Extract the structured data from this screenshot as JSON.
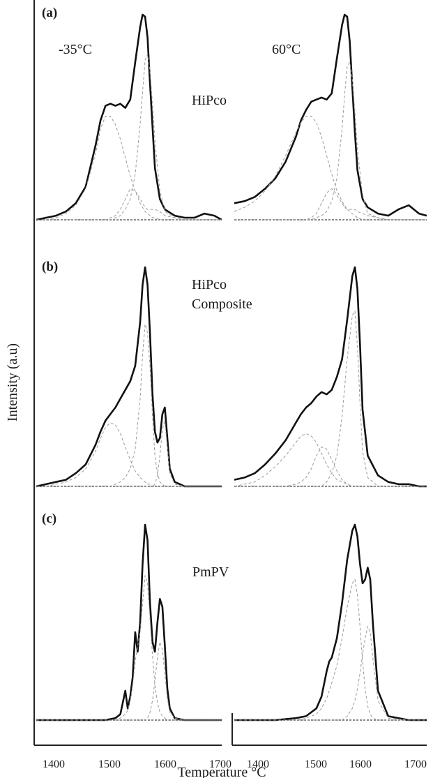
{
  "figure": {
    "ylabel": "Intensity (a.u)",
    "xlabel": "Temperature °C",
    "columns": [
      "-35°C",
      "60°C"
    ],
    "x_ticks": [
      "1400",
      "1500",
      "1600",
      "1700"
    ]
  },
  "chart_data": [
    {
      "type": "line",
      "panel": "(a)",
      "label": "HiPco",
      "column": "-35°C",
      "x": [
        1360,
        1380,
        1400,
        1420,
        1440,
        1460,
        1480,
        1490,
        1500,
        1510,
        1520,
        1530,
        1540,
        1550,
        1560,
        1570,
        1575,
        1580,
        1585,
        1590,
        1595,
        1600,
        1610,
        1620,
        1640,
        1660,
        1680,
        1700,
        1720,
        1735
      ],
      "series": [
        {
          "values": [
            0.0,
            0.01,
            0.02,
            0.04,
            0.08,
            0.16,
            0.36,
            0.48,
            0.55,
            0.56,
            0.55,
            0.56,
            0.54,
            0.58,
            0.76,
            0.93,
            0.99,
            0.98,
            0.88,
            0.66,
            0.45,
            0.25,
            0.1,
            0.05,
            0.02,
            0.01,
            0.01,
            0.03,
            0.02,
            0.0
          ]
        },
        {
          "values": [
            0.0,
            0.0,
            0.01,
            0.03,
            0.07,
            0.15,
            0.32,
            0.44,
            0.5,
            0.5,
            0.46,
            0.39,
            0.3,
            0.21,
            0.14,
            0.08,
            0.06,
            0.04,
            0.03,
            0.02,
            0.01,
            0.01,
            0.0,
            0.0,
            0.0,
            0.0,
            0.0,
            0.0,
            0.0,
            0.0
          ]
        },
        {
          "values": [
            0.0,
            0.0,
            0.0,
            0.0,
            0.0,
            0.0,
            0.0,
            0.0,
            0.0,
            0.0,
            0.01,
            0.02,
            0.05,
            0.1,
            0.22,
            0.46,
            0.62,
            0.77,
            0.8,
            0.72,
            0.56,
            0.38,
            0.14,
            0.04,
            0.01,
            0.0,
            0.0,
            0.0,
            0.0,
            0.0
          ]
        },
        {
          "values": [
            0.0,
            0.0,
            0.0,
            0.0,
            0.0,
            0.0,
            0.0,
            0.0,
            0.0,
            0.01,
            0.02,
            0.05,
            0.1,
            0.15,
            0.14,
            0.1,
            0.08,
            0.06,
            0.05,
            0.05,
            0.05,
            0.05,
            0.04,
            0.02,
            0.01,
            0.0,
            0.0,
            0.0,
            0.0,
            0.0
          ]
        }
      ],
      "ylim": [
        0,
        1
      ]
    },
    {
      "type": "line",
      "panel": "(a)",
      "label": "HiPco",
      "column": "60°C",
      "x": [
        1360,
        1380,
        1400,
        1420,
        1440,
        1460,
        1480,
        1490,
        1500,
        1510,
        1520,
        1530,
        1540,
        1550,
        1560,
        1570,
        1575,
        1580,
        1585,
        1590,
        1595,
        1600,
        1610,
        1620,
        1640,
        1660,
        1680,
        1700,
        1720,
        1735
      ],
      "series": [
        {
          "values": [
            0.08,
            0.09,
            0.11,
            0.15,
            0.2,
            0.28,
            0.4,
            0.48,
            0.53,
            0.57,
            0.58,
            0.59,
            0.58,
            0.61,
            0.78,
            0.94,
            0.99,
            0.98,
            0.86,
            0.64,
            0.42,
            0.24,
            0.1,
            0.06,
            0.03,
            0.02,
            0.05,
            0.07,
            0.03,
            0.02
          ]
        },
        {
          "values": [
            0.04,
            0.06,
            0.09,
            0.14,
            0.21,
            0.31,
            0.42,
            0.47,
            0.5,
            0.5,
            0.47,
            0.4,
            0.31,
            0.22,
            0.14,
            0.09,
            0.07,
            0.05,
            0.04,
            0.03,
            0.02,
            0.01,
            0.0,
            0.0,
            0.0,
            0.0,
            0.0,
            0.0,
            0.0,
            0.0
          ]
        },
        {
          "values": [
            0.0,
            0.0,
            0.0,
            0.0,
            0.0,
            0.0,
            0.0,
            0.0,
            0.0,
            0.0,
            0.01,
            0.02,
            0.04,
            0.09,
            0.2,
            0.44,
            0.6,
            0.74,
            0.76,
            0.68,
            0.52,
            0.34,
            0.12,
            0.03,
            0.01,
            0.0,
            0.0,
            0.0,
            0.0,
            0.0
          ]
        },
        {
          "values": [
            0.0,
            0.0,
            0.0,
            0.0,
            0.0,
            0.0,
            0.0,
            0.0,
            0.0,
            0.01,
            0.03,
            0.08,
            0.13,
            0.15,
            0.12,
            0.08,
            0.06,
            0.05,
            0.05,
            0.05,
            0.05,
            0.04,
            0.03,
            0.02,
            0.01,
            0.0,
            0.0,
            0.0,
            0.0,
            0.0
          ]
        }
      ],
      "ylim": [
        0,
        1
      ]
    },
    {
      "type": "line",
      "panel": "(b)",
      "label": "HiPco Composite",
      "column": "-35°C",
      "x": [
        1360,
        1380,
        1400,
        1420,
        1440,
        1460,
        1480,
        1490,
        1500,
        1510,
        1520,
        1530,
        1540,
        1550,
        1560,
        1570,
        1575,
        1580,
        1585,
        1590,
        1595,
        1600,
        1605,
        1610,
        1615,
        1620,
        1625,
        1630,
        1640,
        1660,
        1680,
        1700,
        1720,
        1735
      ],
      "series": [
        {
          "values": [
            0.0,
            0.01,
            0.02,
            0.03,
            0.06,
            0.1,
            0.19,
            0.25,
            0.3,
            0.33,
            0.36,
            0.4,
            0.44,
            0.48,
            0.55,
            0.75,
            0.92,
            1.0,
            0.92,
            0.7,
            0.42,
            0.25,
            0.2,
            0.22,
            0.33,
            0.36,
            0.22,
            0.08,
            0.02,
            0.0,
            0.0,
            0.0,
            0.0,
            0.0
          ]
        },
        {
          "values": [
            0.0,
            0.0,
            0.01,
            0.02,
            0.04,
            0.08,
            0.16,
            0.22,
            0.27,
            0.29,
            0.28,
            0.24,
            0.18,
            0.12,
            0.07,
            0.04,
            0.03,
            0.02,
            0.01,
            0.01,
            0.0,
            0.0,
            0.0,
            0.0,
            0.0,
            0.0,
            0.0,
            0.0,
            0.0,
            0.0,
            0.0,
            0.0,
            0.0,
            0.0
          ]
        },
        {
          "values": [
            0.0,
            0.0,
            0.0,
            0.0,
            0.0,
            0.0,
            0.0,
            0.0,
            0.0,
            0.0,
            0.01,
            0.02,
            0.04,
            0.08,
            0.17,
            0.4,
            0.6,
            0.74,
            0.7,
            0.55,
            0.32,
            0.14,
            0.06,
            0.02,
            0.01,
            0.0,
            0.0,
            0.0,
            0.0,
            0.0,
            0.0,
            0.0,
            0.0,
            0.0
          ]
        },
        {
          "values": [
            0.0,
            0.0,
            0.0,
            0.0,
            0.0,
            0.0,
            0.0,
            0.0,
            0.0,
            0.0,
            0.0,
            0.0,
            0.0,
            0.0,
            0.0,
            0.0,
            0.0,
            0.0,
            0.0,
            0.0,
            0.0,
            0.01,
            0.05,
            0.14,
            0.26,
            0.3,
            0.18,
            0.06,
            0.01,
            0.0,
            0.0,
            0.0,
            0.0,
            0.0
          ]
        }
      ],
      "ylim": [
        0,
        1
      ]
    },
    {
      "type": "line",
      "panel": "(b)",
      "label": "HiPco Composite",
      "column": "60°C",
      "x": [
        1360,
        1380,
        1400,
        1420,
        1440,
        1460,
        1480,
        1490,
        1500,
        1510,
        1520,
        1530,
        1540,
        1550,
        1560,
        1570,
        1580,
        1590,
        1595,
        1600,
        1605,
        1610,
        1620,
        1640,
        1660,
        1680,
        1700,
        1720,
        1735
      ],
      "series": [
        {
          "values": [
            0.03,
            0.04,
            0.06,
            0.1,
            0.15,
            0.21,
            0.29,
            0.33,
            0.36,
            0.38,
            0.41,
            0.43,
            0.42,
            0.44,
            0.5,
            0.58,
            0.76,
            0.96,
            1.0,
            0.9,
            0.65,
            0.35,
            0.14,
            0.05,
            0.02,
            0.01,
            0.01,
            0.0,
            0.0
          ]
        },
        {
          "values": [
            0.0,
            0.01,
            0.02,
            0.05,
            0.09,
            0.14,
            0.2,
            0.23,
            0.24,
            0.23,
            0.2,
            0.15,
            0.1,
            0.06,
            0.03,
            0.02,
            0.01,
            0.0,
            0.0,
            0.0,
            0.0,
            0.0,
            0.0,
            0.0,
            0.0,
            0.0,
            0.0,
            0.0,
            0.0
          ]
        },
        {
          "values": [
            0.0,
            0.0,
            0.0,
            0.0,
            0.0,
            0.0,
            0.01,
            0.02,
            0.04,
            0.08,
            0.14,
            0.18,
            0.17,
            0.12,
            0.07,
            0.03,
            0.01,
            0.0,
            0.0,
            0.0,
            0.0,
            0.0,
            0.0,
            0.0,
            0.0,
            0.0,
            0.0,
            0.0,
            0.0
          ]
        },
        {
          "values": [
            0.0,
            0.0,
            0.0,
            0.0,
            0.0,
            0.0,
            0.0,
            0.0,
            0.0,
            0.0,
            0.0,
            0.0,
            0.02,
            0.06,
            0.14,
            0.32,
            0.58,
            0.78,
            0.8,
            0.64,
            0.38,
            0.16,
            0.04,
            0.0,
            0.0,
            0.0,
            0.0,
            0.0,
            0.0
          ]
        }
      ],
      "ylim": [
        0,
        1
      ]
    },
    {
      "type": "line",
      "panel": "(c)",
      "label": "PmPV",
      "column": "-35°C",
      "x": [
        1360,
        1400,
        1440,
        1480,
        1500,
        1520,
        1530,
        1540,
        1545,
        1550,
        1555,
        1560,
        1565,
        1570,
        1575,
        1580,
        1585,
        1590,
        1595,
        1600,
        1605,
        1610,
        1615,
        1620,
        1625,
        1630,
        1640,
        1660,
        1700,
        1735
      ],
      "series": [
        {
          "values": [
            0.0,
            0.0,
            0.0,
            0.0,
            0.0,
            0.01,
            0.03,
            0.15,
            0.06,
            0.12,
            0.22,
            0.45,
            0.35,
            0.5,
            0.8,
            1.0,
            0.92,
            0.6,
            0.4,
            0.35,
            0.5,
            0.62,
            0.58,
            0.38,
            0.16,
            0.06,
            0.01,
            0.0,
            0.0,
            0.0
          ]
        },
        {
          "values": [
            0.0,
            0.0,
            0.0,
            0.0,
            0.0,
            0.0,
            0.01,
            0.03,
            0.05,
            0.1,
            0.18,
            0.3,
            0.38,
            0.45,
            0.6,
            0.74,
            0.7,
            0.52,
            0.33,
            0.18,
            0.09,
            0.04,
            0.02,
            0.01,
            0.0,
            0.0,
            0.0,
            0.0,
            0.0,
            0.0
          ]
        },
        {
          "values": [
            0.0,
            0.0,
            0.0,
            0.0,
            0.0,
            0.0,
            0.0,
            0.0,
            0.0,
            0.0,
            0.0,
            0.0,
            0.0,
            0.0,
            0.0,
            0.0,
            0.01,
            0.04,
            0.1,
            0.2,
            0.32,
            0.4,
            0.36,
            0.24,
            0.11,
            0.04,
            0.01,
            0.0,
            0.0,
            0.0
          ]
        }
      ],
      "ylim": [
        0,
        1
      ]
    },
    {
      "type": "line",
      "panel": "(c)",
      "label": "PmPV",
      "column": "60°C",
      "x": [
        1360,
        1400,
        1440,
        1480,
        1500,
        1520,
        1530,
        1540,
        1545,
        1550,
        1560,
        1570,
        1580,
        1590,
        1595,
        1600,
        1605,
        1610,
        1615,
        1620,
        1625,
        1630,
        1640,
        1660,
        1700,
        1735
      ],
      "series": [
        {
          "values": [
            0.0,
            0.0,
            0.0,
            0.01,
            0.02,
            0.06,
            0.12,
            0.25,
            0.3,
            0.32,
            0.42,
            0.6,
            0.82,
            0.97,
            1.0,
            0.94,
            0.8,
            0.7,
            0.72,
            0.78,
            0.72,
            0.5,
            0.15,
            0.02,
            0.0,
            0.0
          ]
        },
        {
          "values": [
            0.0,
            0.0,
            0.0,
            0.0,
            0.01,
            0.03,
            0.06,
            0.11,
            0.15,
            0.19,
            0.28,
            0.42,
            0.58,
            0.7,
            0.72,
            0.64,
            0.48,
            0.3,
            0.16,
            0.07,
            0.03,
            0.01,
            0.0,
            0.0,
            0.0,
            0.0
          ]
        },
        {
          "values": [
            0.0,
            0.0,
            0.0,
            0.0,
            0.0,
            0.0,
            0.0,
            0.0,
            0.0,
            0.0,
            0.0,
            0.0,
            0.02,
            0.06,
            0.1,
            0.16,
            0.24,
            0.34,
            0.42,
            0.48,
            0.45,
            0.32,
            0.1,
            0.01,
            0.0,
            0.0
          ]
        }
      ],
      "ylim": [
        0,
        1
      ]
    }
  ]
}
